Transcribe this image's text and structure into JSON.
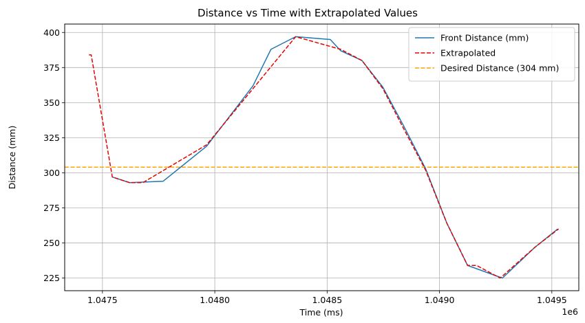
{
  "chart_data": {
    "type": "line",
    "title": "Distance vs Time with Extrapolated Values",
    "xlabel": "Time (ms)",
    "ylabel": "Distance (mm)",
    "x_offset_label": "1e6",
    "xlim": [
      1047332,
      1049620
    ],
    "ylim": [
      216,
      406
    ],
    "x_ticks": [
      1047500,
      1048000,
      1048500,
      1049000,
      1049500
    ],
    "x_tick_labels": [
      "1.0475",
      "1.0480",
      "1.0485",
      "1.0490",
      "1.0495"
    ],
    "y_ticks": [
      225,
      250,
      275,
      300,
      325,
      350,
      375,
      400
    ],
    "y_tick_labels": [
      "225",
      "250",
      "275",
      "300",
      "325",
      "350",
      "375",
      "400"
    ],
    "grid": true,
    "legend_position": "top-right",
    "series": [
      {
        "name": "Front Distance (mm)",
        "color": "#1f77b4",
        "style": "solid",
        "x": [
          1047544,
          1047621,
          1047770,
          1047964,
          1048170,
          1048250,
          1048360,
          1048514,
          1048560,
          1048655,
          1048748,
          1048842,
          1048938,
          1049033,
          1049125,
          1049280,
          1049425,
          1049526
        ],
        "y": [
          297,
          293,
          294,
          319,
          362,
          388,
          397,
          395,
          387,
          380,
          361,
          333,
          303,
          264,
          234,
          225,
          247,
          260
        ]
      },
      {
        "name": "Extrapolated",
        "color": "#e60000",
        "style": "dashed",
        "x": [
          1047440,
          1047450,
          1047544,
          1047621,
          1047680,
          1047964,
          1048170,
          1048360,
          1048560,
          1048655,
          1048748,
          1048842,
          1048938,
          1049033,
          1049125,
          1049165,
          1049270,
          1049425,
          1049530
        ],
        "y": [
          384,
          384,
          297,
          293,
          293,
          320,
          360,
          397,
          388,
          380,
          360,
          331,
          302,
          264,
          234,
          234,
          225,
          247,
          260
        ]
      }
    ],
    "hlines": [
      {
        "name": "Desired Distance (304 mm)",
        "y": 304,
        "color": "#ffa500",
        "style": "dashed"
      }
    ]
  }
}
